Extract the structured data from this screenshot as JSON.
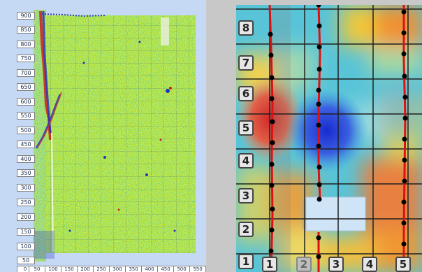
{
  "left_view": {
    "y_labels": [
      "900",
      "850",
      "800",
      "750",
      "700",
      "650",
      "600",
      "550",
      "500",
      "450",
      "400",
      "350",
      "300",
      "250",
      "200",
      "150",
      "100",
      "50"
    ],
    "x_labels": [
      "0",
      "50",
      "100",
      "150",
      "200",
      "250",
      "300",
      "350",
      "400",
      "450",
      "500",
      "550"
    ]
  },
  "right_view": {
    "row_labels": [
      "8",
      "7",
      "6",
      "5",
      "4",
      "3",
      "2",
      "1"
    ],
    "col_labels": [
      "1",
      "2",
      "3",
      "4",
      "5"
    ]
  },
  "colors": {
    "panel_bg": "#c5d8f4",
    "grid_line": "#222222",
    "trace_line": "#dd1111",
    "marker": "#000000"
  }
}
